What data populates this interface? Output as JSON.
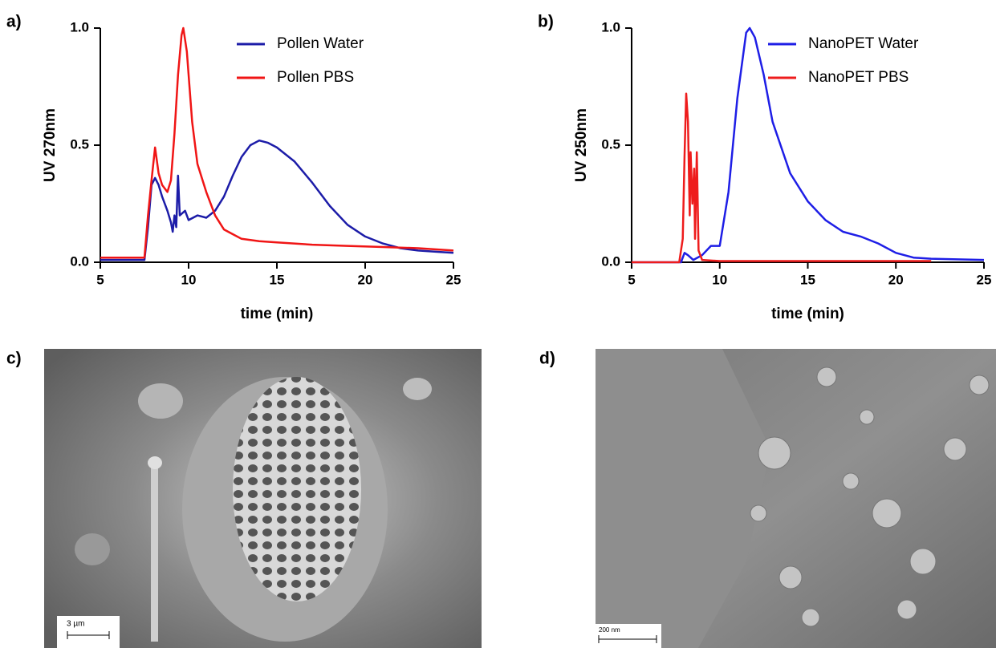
{
  "chart_data": [
    {
      "type": "line",
      "panel_label": "a)",
      "x_label": "time (min)",
      "y_label": "UV 270nm",
      "xlim": [
        5,
        25
      ],
      "ylim": [
        0,
        1
      ],
      "xticks": [
        5,
        10,
        15,
        20,
        25
      ],
      "yticks": [
        {
          "value": 0,
          "label": "0.0"
        },
        0.5,
        {
          "value": 1,
          "label": "1.0"
        }
      ],
      "legend": "upper right",
      "series": [
        {
          "name": "Pollen Water",
          "color": "#1c1ca8",
          "x": [
            5,
            7.5,
            7.7,
            7.9,
            8.1,
            8.3,
            8.5,
            8.8,
            9.0,
            9.1,
            9.2,
            9.3,
            9.4,
            9.5,
            9.8,
            10.0,
            10.5,
            11,
            11.5,
            12,
            12.5,
            13,
            13.5,
            14,
            14.5,
            15,
            16,
            17,
            18,
            19,
            20,
            21,
            22,
            23,
            24,
            25
          ],
          "values": [
            0.01,
            0.01,
            0.15,
            0.33,
            0.36,
            0.33,
            0.28,
            0.22,
            0.17,
            0.13,
            0.2,
            0.15,
            0.37,
            0.2,
            0.22,
            0.18,
            0.2,
            0.19,
            0.22,
            0.28,
            0.37,
            0.45,
            0.5,
            0.52,
            0.51,
            0.49,
            0.43,
            0.34,
            0.24,
            0.16,
            0.11,
            0.08,
            0.06,
            0.05,
            0.045,
            0.04
          ]
        },
        {
          "name": "Pollen PBS",
          "color": "#f01515",
          "x": [
            5,
            7.5,
            7.7,
            7.9,
            8.1,
            8.3,
            8.5,
            8.8,
            9.0,
            9.2,
            9.4,
            9.6,
            9.7,
            9.9,
            10.2,
            10.5,
            11,
            11.5,
            12,
            12.5,
            13,
            14,
            15,
            17,
            19,
            21,
            23,
            25
          ],
          "values": [
            0.02,
            0.02,
            0.2,
            0.35,
            0.49,
            0.38,
            0.33,
            0.3,
            0.35,
            0.55,
            0.8,
            0.97,
            1.0,
            0.9,
            0.6,
            0.42,
            0.3,
            0.2,
            0.14,
            0.12,
            0.1,
            0.09,
            0.085,
            0.075,
            0.07,
            0.065,
            0.06,
            0.05
          ]
        }
      ]
    },
    {
      "type": "line",
      "panel_label": "b)",
      "x_label": "time (min)",
      "y_label": "UV 250nm",
      "xlim": [
        5,
        25
      ],
      "ylim": [
        0,
        1
      ],
      "xticks": [
        5,
        10,
        15,
        20,
        25
      ],
      "yticks": [
        {
          "value": 0,
          "label": "0.0"
        },
        0.5,
        {
          "value": 1,
          "label": "1.0"
        }
      ],
      "legend": "upper right",
      "series": [
        {
          "name": "NanoPET Water",
          "color": "#1e1ee6",
          "x": [
            5,
            7.8,
            8.0,
            8.2,
            8.5,
            9,
            9.5,
            10,
            10.5,
            11,
            11.5,
            11.7,
            12,
            12.5,
            13,
            14,
            15,
            16,
            17,
            18,
            19,
            20,
            21,
            22,
            25
          ],
          "values": [
            0,
            0,
            0.04,
            0.03,
            0.01,
            0.03,
            0.07,
            0.07,
            0.3,
            0.7,
            0.98,
            1.0,
            0.96,
            0.8,
            0.6,
            0.38,
            0.26,
            0.18,
            0.13,
            0.11,
            0.08,
            0.04,
            0.02,
            0.015,
            0.01
          ]
        },
        {
          "name": "NanoPET PBS",
          "color": "#ee1c1c",
          "x": [
            5,
            7.7,
            7.9,
            8.0,
            8.1,
            8.2,
            8.3,
            8.35,
            8.45,
            8.55,
            8.6,
            8.7,
            8.8,
            9.0,
            10,
            22
          ],
          "values": [
            0,
            0,
            0.1,
            0.45,
            0.72,
            0.6,
            0.2,
            0.47,
            0.25,
            0.4,
            0.1,
            0.47,
            0.05,
            0.01,
            0.005,
            0.005
          ]
        }
      ]
    }
  ],
  "images": [
    {
      "panel_label": "c)",
      "scale_bar": "3 µm"
    },
    {
      "panel_label": "d)",
      "scale_bar": "200 nm"
    }
  ]
}
